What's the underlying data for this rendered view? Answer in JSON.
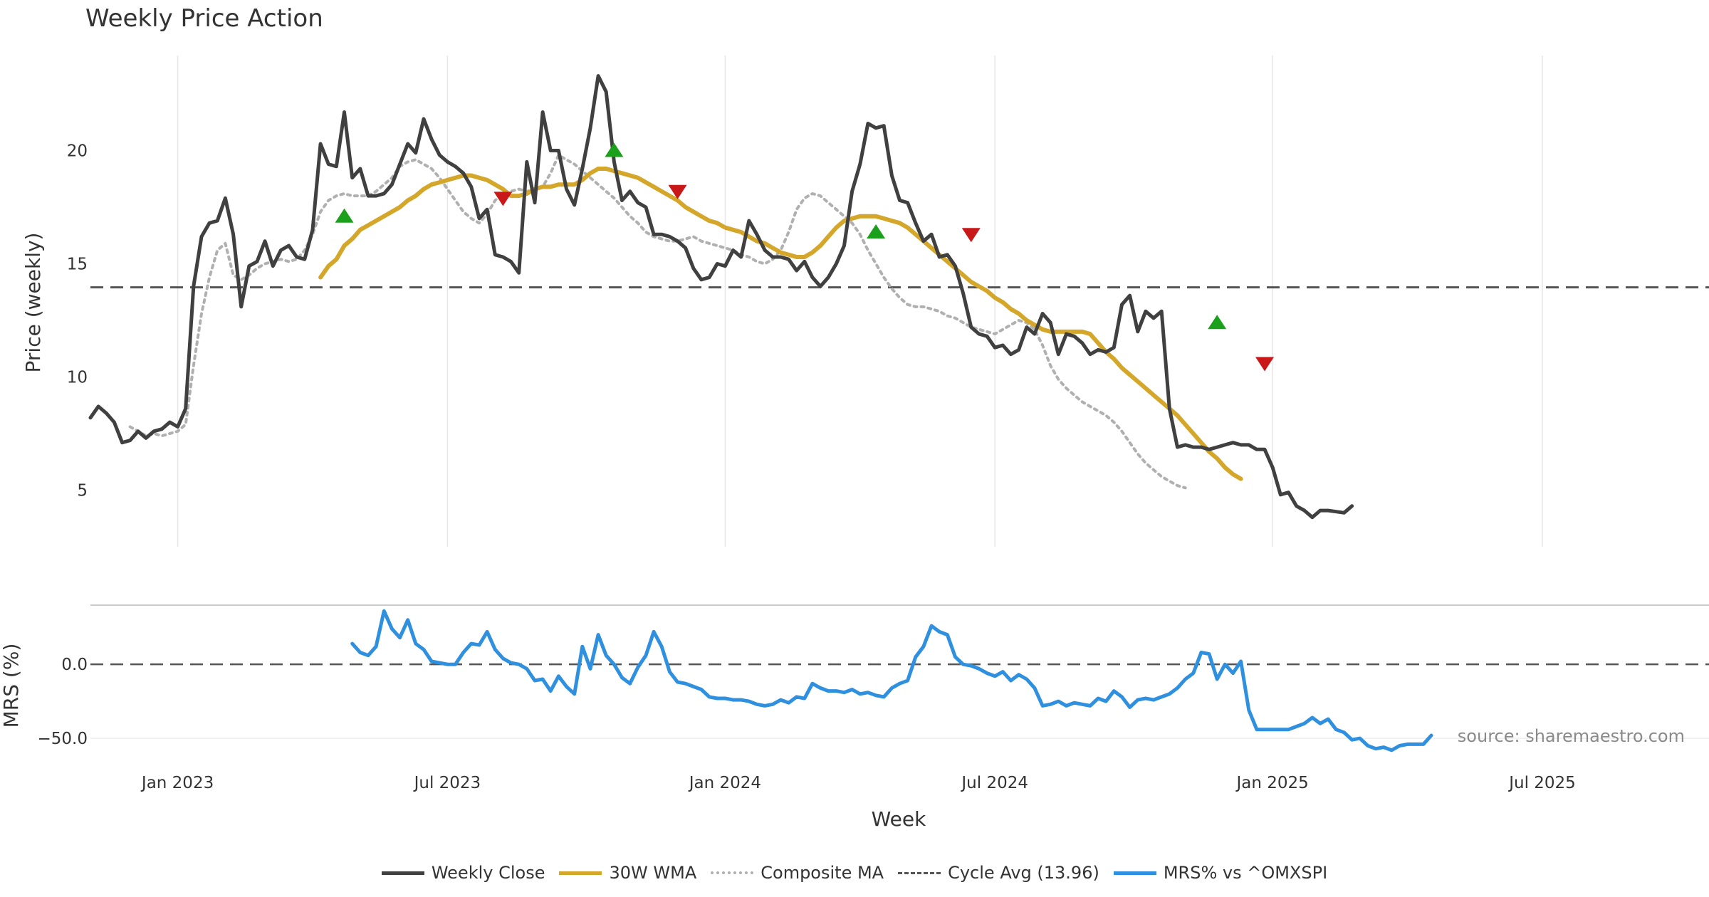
{
  "title": "Weekly Price Action",
  "source": "source: sharemaestro.com",
  "colors": {
    "close": "#404040",
    "wma": "#d4a62a",
    "composite": "#b0b0b0",
    "cycle": "#555555",
    "mrs": "#3090e0",
    "buy": "#1aa01a",
    "sell": "#c81818",
    "grid": "#e6e6e6"
  },
  "legend": [
    {
      "label": "Weekly Close",
      "color": "#404040",
      "style": "solid"
    },
    {
      "label": "30W WMA",
      "color": "#d4a62a",
      "style": "solid"
    },
    {
      "label": "Composite MA",
      "color": "#b0b0b0",
      "style": "dotted"
    },
    {
      "label": "Cycle Avg (13.96)",
      "color": "#555555",
      "style": "dashed"
    },
    {
      "label": "MRS% vs ^OMXSPI",
      "color": "#3090e0",
      "style": "solid"
    }
  ],
  "chart_data": [
    {
      "type": "line",
      "title": "Weekly Price Action",
      "xlabel": "Week",
      "ylabel": "Price (weekly)",
      "x_tick_labels": [
        "Jan 2023",
        "Jul 2023",
        "Jan 2024",
        "Jul 2024",
        "Jan 2025",
        "Jul 2025"
      ],
      "x_tick_indices": [
        11,
        45,
        80,
        114,
        149,
        183
      ],
      "y_ticks": [
        5,
        10,
        15,
        20
      ],
      "ylim": [
        2.5,
        24.2
      ],
      "x_count": 205,
      "cycle_avg": 13.96,
      "series": [
        {
          "name": "Weekly Close",
          "style": "solid",
          "start": 0,
          "values": [
            8.2,
            8.7,
            8.4,
            8.0,
            7.1,
            7.2,
            7.6,
            7.3,
            7.6,
            7.7,
            8.0,
            7.8,
            8.6,
            14.0,
            16.2,
            16.8,
            16.9,
            17.9,
            16.3,
            13.1,
            14.9,
            15.1,
            16.0,
            14.9,
            15.6,
            15.8,
            15.3,
            15.2,
            16.5,
            20.3,
            19.4,
            19.3,
            21.7,
            18.8,
            19.2,
            18.0,
            18.0,
            18.1,
            18.5,
            19.4,
            20.3,
            19.9,
            21.4,
            20.5,
            19.8,
            19.5,
            19.3,
            19.0,
            18.4,
            17.0,
            17.4,
            15.4,
            15.3,
            15.1,
            14.6,
            19.5,
            17.7,
            21.7,
            20.0,
            20.0,
            18.3,
            17.6,
            19.2,
            21.0,
            23.3,
            22.6,
            19.5,
            17.8,
            18.2,
            17.7,
            17.5,
            16.3,
            16.3,
            16.2,
            16.0,
            15.7,
            14.8,
            14.3,
            14.4,
            15.0,
            14.9,
            15.6,
            15.3,
            16.9,
            16.3,
            15.6,
            15.3,
            15.3,
            15.2,
            14.7,
            15.1,
            14.4,
            14.0,
            14.4,
            15.0,
            15.8,
            18.2,
            19.4,
            21.2,
            21.0,
            21.1,
            18.9,
            17.8,
            17.7,
            16.8,
            16.0,
            16.3,
            15.3,
            15.4,
            14.9,
            13.7,
            12.2,
            11.9,
            11.8,
            11.3,
            11.4,
            11.0,
            11.2,
            12.2,
            11.9,
            12.8,
            12.4,
            11.0,
            11.9,
            11.8,
            11.5,
            11.0,
            11.2,
            11.1,
            11.3,
            13.2,
            13.6,
            12.0,
            12.9,
            12.6,
            12.9,
            8.6,
            6.9,
            7.0,
            6.9,
            6.9,
            6.8,
            6.9,
            7.0,
            7.1,
            7.0,
            7.0,
            6.8,
            6.8,
            6.0,
            4.8,
            4.9,
            4.3,
            4.1,
            3.8,
            4.1,
            4.1,
            4.05,
            4.0,
            4.3
          ]
        },
        {
          "name": "30W WMA",
          "style": "solid",
          "start": 29,
          "values": [
            14.4,
            14.9,
            15.2,
            15.8,
            16.1,
            16.5,
            16.7,
            16.9,
            17.1,
            17.3,
            17.5,
            17.8,
            18.0,
            18.3,
            18.5,
            18.6,
            18.7,
            18.8,
            18.9,
            18.9,
            18.8,
            18.7,
            18.5,
            18.3,
            18.0,
            18.0,
            18.1,
            18.3,
            18.4,
            18.4,
            18.5,
            18.5,
            18.5,
            18.7,
            19.0,
            19.2,
            19.2,
            19.1,
            19.0,
            18.9,
            18.8,
            18.6,
            18.4,
            18.2,
            18.0,
            17.8,
            17.5,
            17.3,
            17.1,
            16.9,
            16.8,
            16.6,
            16.5,
            16.4,
            16.2,
            16.0,
            15.9,
            15.7,
            15.5,
            15.4,
            15.3,
            15.3,
            15.5,
            15.8,
            16.2,
            16.6,
            16.9,
            17.0,
            17.1,
            17.1,
            17.1,
            17.0,
            16.9,
            16.8,
            16.6,
            16.3,
            16.0,
            15.7,
            15.4,
            15.1,
            14.8,
            14.5,
            14.2,
            14.0,
            13.8,
            13.5,
            13.3,
            13.0,
            12.8,
            12.5,
            12.3,
            12.1,
            12.0,
            12.0,
            12.0,
            12.0,
            12.0,
            11.9,
            11.5,
            11.1,
            10.8,
            10.4,
            10.1,
            9.8,
            9.5,
            9.2,
            8.9,
            8.6,
            8.3,
            7.9,
            7.5,
            7.1,
            6.7,
            6.4,
            6.0,
            5.7,
            5.5
          ]
        },
        {
          "name": "Composite MA",
          "style": "dotted",
          "start": 5,
          "values": [
            7.8,
            7.6,
            7.4,
            7.5,
            7.4,
            7.5,
            7.6,
            7.9,
            10.5,
            12.8,
            14.4,
            15.6,
            15.9,
            14.5,
            14.3,
            14.5,
            14.8,
            15.0,
            15.1,
            15.2,
            15.1,
            15.2,
            15.6,
            16.3,
            17.3,
            17.8,
            18.0,
            18.1,
            18.0,
            18.0,
            18.0,
            18.2,
            18.5,
            18.8,
            19.3,
            19.5,
            19.6,
            19.4,
            19.2,
            18.8,
            18.3,
            17.8,
            17.3,
            17.0,
            16.8,
            17.2,
            17.8,
            18.1,
            18.2,
            18.3,
            18.2,
            18.3,
            18.4,
            19.0,
            19.8,
            19.6,
            19.4,
            19.1,
            18.8,
            18.5,
            18.2,
            17.9,
            17.5,
            17.1,
            16.8,
            16.4,
            16.2,
            16.1,
            16.0,
            16.0,
            16.1,
            16.2,
            16.0,
            15.9,
            15.8,
            15.7,
            15.6,
            15.4,
            15.3,
            15.1,
            15.0,
            15.2,
            15.6,
            16.4,
            17.4,
            17.9,
            18.1,
            18.0,
            17.7,
            17.4,
            17.1,
            16.8,
            16.3,
            15.6,
            15.0,
            14.4,
            13.9,
            13.5,
            13.2,
            13.1,
            13.1,
            13.0,
            12.9,
            12.7,
            12.6,
            12.4,
            12.2,
            12.1,
            12.0,
            11.9,
            12.1,
            12.3,
            12.5,
            12.4,
            12.1,
            11.4,
            10.5,
            9.9,
            9.5,
            9.2,
            8.9,
            8.7,
            8.5,
            8.3,
            8.0,
            7.6,
            7.1,
            6.6,
            6.2,
            5.9,
            5.6,
            5.4,
            5.2,
            5.1
          ]
        }
      ],
      "buy_signals": [
        {
          "index": 32,
          "value": 17.1
        },
        {
          "index": 66,
          "value": 20.0
        },
        {
          "index": 99,
          "value": 16.4
        },
        {
          "index": 142,
          "value": 12.4
        }
      ],
      "sell_signals": [
        {
          "index": 52,
          "value": 17.9
        },
        {
          "index": 74,
          "value": 18.2
        },
        {
          "index": 111,
          "value": 16.3
        },
        {
          "index": 148,
          "value": 10.6
        }
      ]
    },
    {
      "type": "line",
      "title": "",
      "xlabel": "Week",
      "ylabel": "MRS (%)",
      "y_ticks": [
        0,
        -50
      ],
      "y_tick_labels": [
        "0.0",
        "−50.0"
      ],
      "ylim": [
        -61,
        40
      ],
      "reference_line": 0,
      "series": [
        {
          "name": "MRS% vs ^OMXSPI",
          "style": "solid",
          "start": 33,
          "values": [
            14,
            8,
            6,
            12,
            36,
            24,
            18,
            30,
            14,
            10,
            2,
            1,
            0,
            0,
            8,
            14,
            13,
            22,
            10,
            4,
            1,
            0,
            -3,
            -11,
            -10,
            -18,
            -8,
            -15,
            -20,
            12,
            -3,
            20,
            6,
            0,
            -9,
            -13,
            -2,
            6,
            22,
            12,
            -5,
            -12,
            -13,
            -15,
            -17,
            -22,
            -23,
            -23,
            -24,
            -24,
            -25,
            -27,
            -28,
            -27,
            -24,
            -26,
            -22,
            -23,
            -13,
            -16,
            -18,
            -18,
            -19,
            -17,
            -20,
            -19,
            -21,
            -22,
            -16,
            -13,
            -11,
            5,
            12,
            26,
            22,
            20,
            5,
            0,
            -1,
            -3,
            -6,
            -8,
            -5,
            -11,
            -7,
            -10,
            -16,
            -28,
            -27,
            -25,
            -28,
            -26,
            -27,
            -28,
            -23,
            -25,
            -18,
            -22,
            -29,
            -24,
            -23,
            -24,
            -22,
            -20,
            -16,
            -10,
            -6,
            8,
            7,
            -10,
            0,
            -6,
            2,
            -31,
            -44,
            -44,
            -44,
            -44,
            -44,
            -42,
            -40,
            -36,
            -40,
            -37,
            -44,
            -46,
            -51,
            -50,
            -55,
            -57,
            -56,
            -58,
            -55,
            -54,
            -54,
            -54,
            -48
          ]
        }
      ]
    }
  ]
}
